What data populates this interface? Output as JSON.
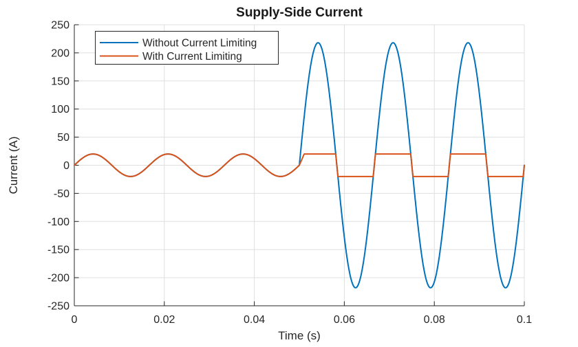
{
  "chart_data": {
    "type": "line",
    "title": "Supply-Side Current",
    "xlabel": "Time (s)",
    "ylabel": "Current (A)",
    "xlim": [
      0,
      0.1
    ],
    "ylim": [
      -250,
      250
    ],
    "xticks": [
      0,
      0.02,
      0.04,
      0.06,
      0.08,
      0.1
    ],
    "xtick_labels": [
      "0",
      "0.02",
      "0.04",
      "0.06",
      "0.08",
      "0.1"
    ],
    "yticks": [
      -250,
      -200,
      -150,
      -100,
      -50,
      0,
      50,
      100,
      150,
      200,
      250
    ],
    "ytick_labels": [
      "-250",
      "-200",
      "-150",
      "-100",
      "-50",
      "0",
      "50",
      "100",
      "150",
      "200",
      "250"
    ],
    "grid": true,
    "legend": {
      "position": "northwest"
    },
    "colors": {
      "axis": "#262626",
      "grid": "#dfdfdf",
      "background": "#ffffff",
      "title": "#1a1a1a"
    },
    "series": [
      {
        "name": "Without Current Limiting",
        "color": "#0072BD",
        "model": "sine_with_fault",
        "frequency_hz": 60,
        "pre_fault_amplitude_A": 20,
        "fault_start_s": 0.05,
        "fault_amplitude_A": 218,
        "clip_A": null
      },
      {
        "name": "With Current Limiting",
        "color": "#D95319",
        "model": "sine_with_fault_clipped",
        "frequency_hz": 60,
        "pre_fault_amplitude_A": 20,
        "fault_start_s": 0.05,
        "fault_amplitude_A": 218,
        "clip_A": 20,
        "onset_ramp_A_per_s": 18500
      }
    ]
  }
}
